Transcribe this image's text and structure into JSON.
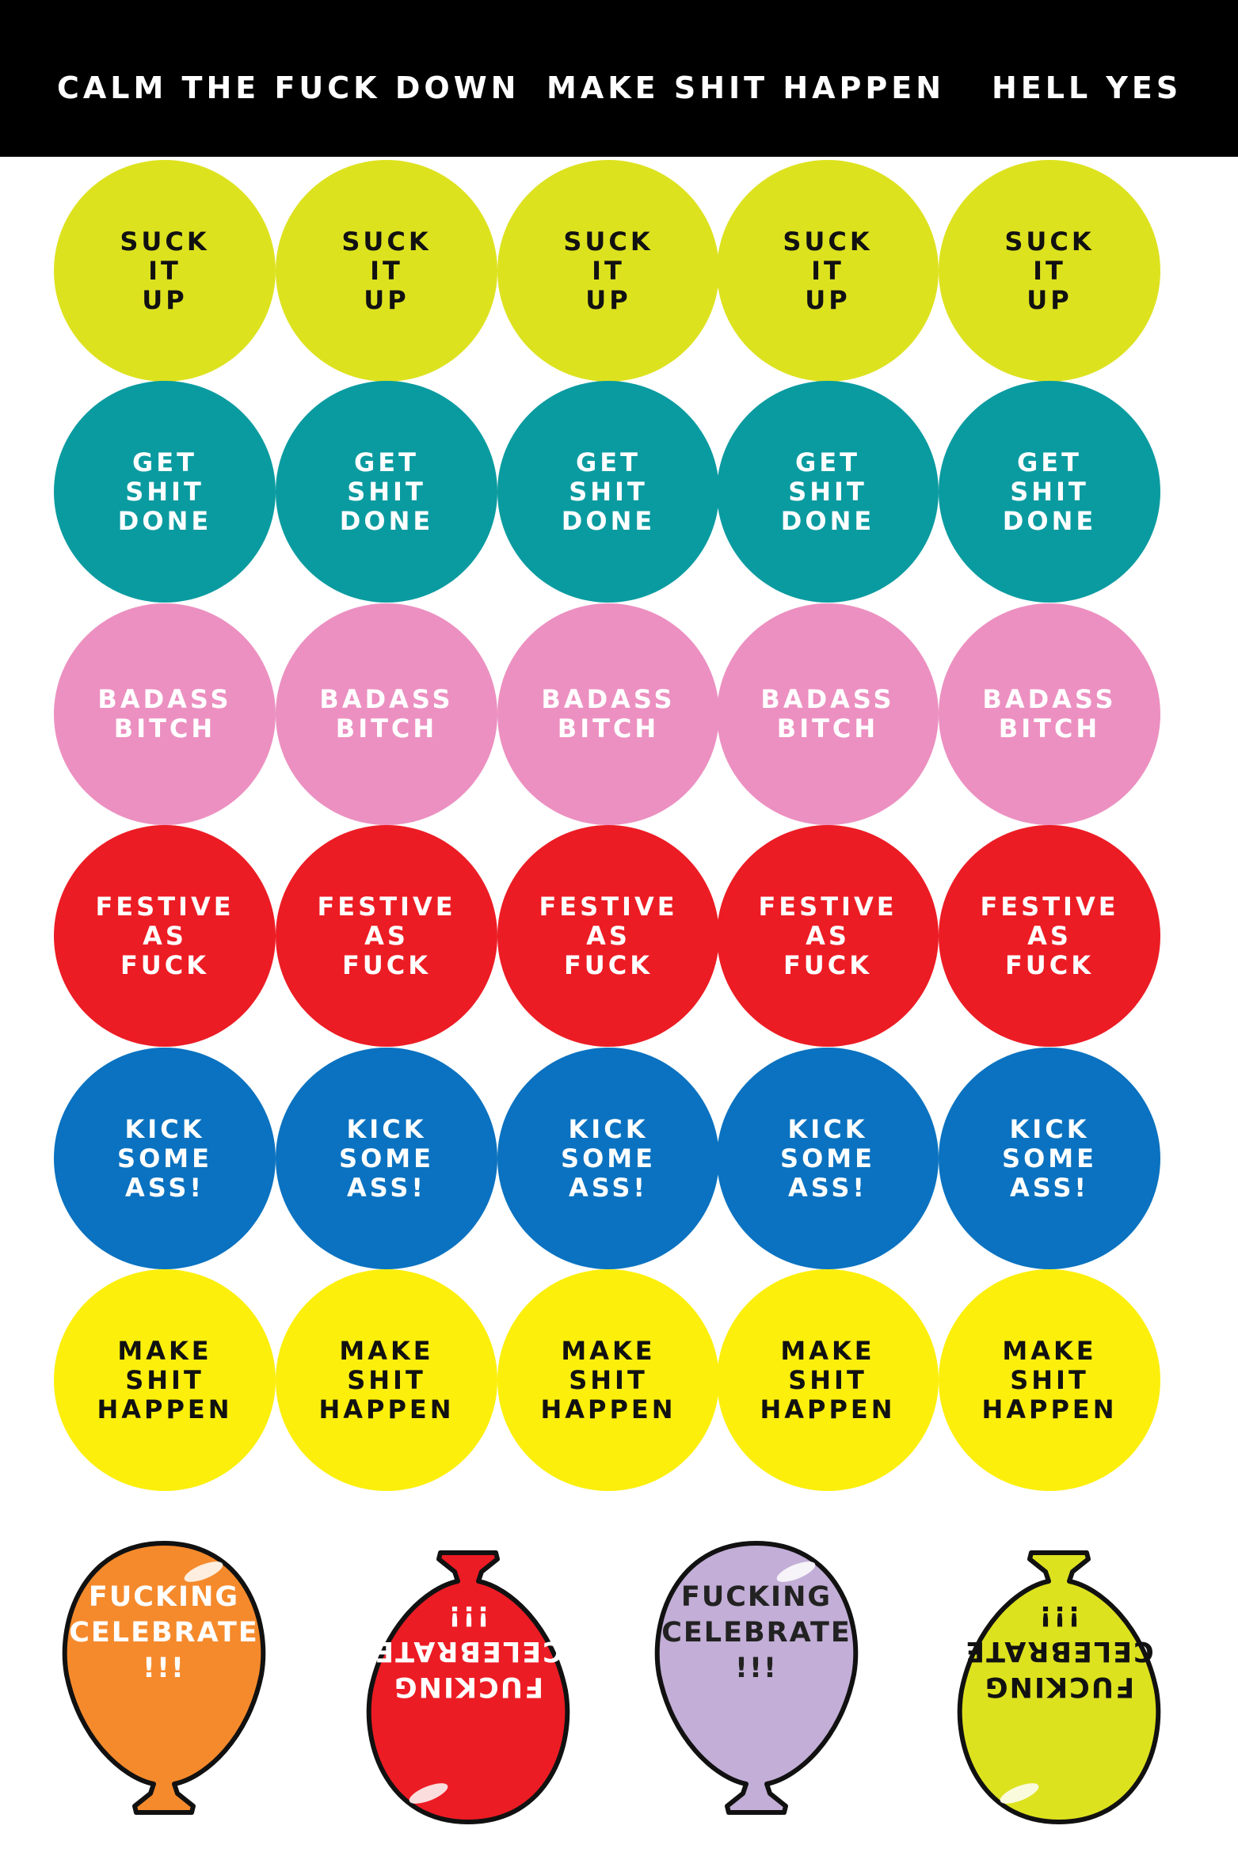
{
  "header": {
    "labels": [
      "CALM THE FUCK DOWN",
      "MAKE SHIT HAPPEN",
      "HELL YES"
    ]
  },
  "sticker_rows": [
    {
      "text": "SUCK\nIT\nUP",
      "color": "#dde21f",
      "text_color": "#111111"
    },
    {
      "text": "GET\nSHIT\nDONE",
      "color": "#0a9ba0",
      "text_color": "#ffffff"
    },
    {
      "text": "BADASS\nBITCH",
      "color": "#ec90c1",
      "text_color": "#ffffff"
    },
    {
      "text": "FESTIVE\nAS\nFUCK",
      "color": "#ec1c24",
      "text_color": "#ffffff"
    },
    {
      "text": "KICK\nSOME\nASS!",
      "color": "#0a72c0",
      "text_color": "#ffffff"
    },
    {
      "text": "MAKE\nSHIT\nHAPPEN",
      "color": "#fcef0c",
      "text_color": "#111111"
    }
  ],
  "balloons": [
    {
      "text": "FUCKING\nCELEBRATE\n!!!",
      "color": "#f58a2c",
      "text_color": "#ffffff",
      "orientation": "upright"
    },
    {
      "text": "FUCKING\nCELEBRATE\n!!!",
      "color": "#ec1c24",
      "text_color": "#ffffff",
      "orientation": "upside-down"
    },
    {
      "text": "FUCKING\nCELEBRATE\n!!!",
      "color": "#c2aed6",
      "text_color": "#222222",
      "orientation": "upright"
    },
    {
      "text": "FUCKING\nCELEBRATE\n!!!",
      "color": "#dde21f",
      "text_color": "#111111",
      "orientation": "upside-down"
    }
  ]
}
